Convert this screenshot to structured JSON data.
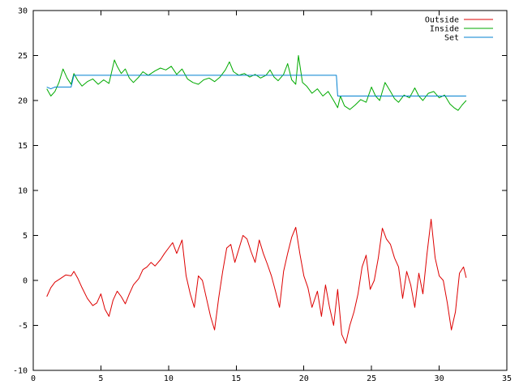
{
  "chart_data": {
    "type": "line",
    "title": "",
    "xlabel": "",
    "ylabel": "",
    "xlim": [
      0,
      35
    ],
    "ylim": [
      -10,
      30
    ],
    "x_ticks": [
      "0",
      "5",
      "10",
      "15",
      "20",
      "25",
      "30",
      "35"
    ],
    "y_ticks": [
      "-10",
      "-5",
      "0",
      "5",
      "10",
      "15",
      "20",
      "25",
      "30"
    ],
    "grid": false,
    "legend": "top-right",
    "series": [
      {
        "name": "Outside",
        "color": "#dd0000",
        "points": [
          [
            1.0,
            -1.8
          ],
          [
            1.3,
            -0.8
          ],
          [
            1.6,
            -0.2
          ],
          [
            2.0,
            0.2
          ],
          [
            2.4,
            0.6
          ],
          [
            2.8,
            0.5
          ],
          [
            3.0,
            1.0
          ],
          [
            3.3,
            0.2
          ],
          [
            3.6,
            -0.8
          ],
          [
            4.0,
            -2.0
          ],
          [
            4.4,
            -2.8
          ],
          [
            4.7,
            -2.5
          ],
          [
            5.0,
            -1.5
          ],
          [
            5.3,
            -3.2
          ],
          [
            5.6,
            -4.0
          ],
          [
            5.9,
            -2.2
          ],
          [
            6.2,
            -1.2
          ],
          [
            6.5,
            -1.8
          ],
          [
            6.8,
            -2.6
          ],
          [
            7.1,
            -1.5
          ],
          [
            7.4,
            -0.5
          ],
          [
            7.8,
            0.2
          ],
          [
            8.1,
            1.2
          ],
          [
            8.4,
            1.5
          ],
          [
            8.7,
            2.0
          ],
          [
            9.0,
            1.6
          ],
          [
            9.4,
            2.3
          ],
          [
            9.7,
            3.0
          ],
          [
            10.0,
            3.6
          ],
          [
            10.3,
            4.2
          ],
          [
            10.6,
            3.0
          ],
          [
            11.0,
            4.5
          ],
          [
            11.3,
            0.5
          ],
          [
            11.6,
            -1.5
          ],
          [
            11.9,
            -3.0
          ],
          [
            12.2,
            0.5
          ],
          [
            12.5,
            0.0
          ],
          [
            12.8,
            -2.0
          ],
          [
            13.1,
            -4.0
          ],
          [
            13.4,
            -5.5
          ],
          [
            13.7,
            -2.0
          ],
          [
            14.0,
            1.0
          ],
          [
            14.3,
            3.6
          ],
          [
            14.6,
            4.0
          ],
          [
            14.9,
            2.0
          ],
          [
            15.2,
            3.5
          ],
          [
            15.5,
            5.0
          ],
          [
            15.8,
            4.6
          ],
          [
            16.1,
            3.2
          ],
          [
            16.4,
            2.0
          ],
          [
            16.7,
            4.5
          ],
          [
            17.0,
            3.0
          ],
          [
            17.3,
            1.8
          ],
          [
            17.6,
            0.5
          ],
          [
            17.9,
            -1.2
          ],
          [
            18.2,
            -3.0
          ],
          [
            18.5,
            1.0
          ],
          [
            18.8,
            3.0
          ],
          [
            19.1,
            4.8
          ],
          [
            19.4,
            5.9
          ],
          [
            19.7,
            3.0
          ],
          [
            20.0,
            0.5
          ],
          [
            20.3,
            -0.8
          ],
          [
            20.6,
            -3.0
          ],
          [
            21.0,
            -1.2
          ],
          [
            21.3,
            -4.0
          ],
          [
            21.6,
            -0.5
          ],
          [
            21.9,
            -3.0
          ],
          [
            22.2,
            -5.0
          ],
          [
            22.5,
            -1.0
          ],
          [
            22.8,
            -6.0
          ],
          [
            23.1,
            -7.0
          ],
          [
            23.4,
            -5.0
          ],
          [
            23.7,
            -3.5
          ],
          [
            24.0,
            -1.5
          ],
          [
            24.3,
            1.5
          ],
          [
            24.6,
            2.8
          ],
          [
            24.9,
            -1.0
          ],
          [
            25.2,
            0.0
          ],
          [
            25.5,
            2.5
          ],
          [
            25.8,
            5.8
          ],
          [
            26.1,
            4.6
          ],
          [
            26.4,
            4.0
          ],
          [
            26.7,
            2.5
          ],
          [
            27.0,
            1.5
          ],
          [
            27.3,
            -2.0
          ],
          [
            27.6,
            1.0
          ],
          [
            27.9,
            -0.5
          ],
          [
            28.2,
            -3.0
          ],
          [
            28.5,
            0.8
          ],
          [
            28.8,
            -1.5
          ],
          [
            29.1,
            3.0
          ],
          [
            29.4,
            6.8
          ],
          [
            29.7,
            2.5
          ],
          [
            30.0,
            0.5
          ],
          [
            30.3,
            0.0
          ],
          [
            30.6,
            -2.5
          ],
          [
            30.9,
            -5.5
          ],
          [
            31.2,
            -3.5
          ],
          [
            31.5,
            0.8
          ],
          [
            31.8,
            1.5
          ],
          [
            32.0,
            0.3
          ]
        ]
      },
      {
        "name": "Inside",
        "color": "#00aa00",
        "points": [
          [
            1.0,
            21.3
          ],
          [
            1.3,
            20.5
          ],
          [
            1.6,
            21.0
          ],
          [
            1.9,
            22.0
          ],
          [
            2.2,
            23.5
          ],
          [
            2.5,
            22.5
          ],
          [
            2.8,
            21.8
          ],
          [
            3.0,
            23.0
          ],
          [
            3.3,
            22.2
          ],
          [
            3.6,
            21.6
          ],
          [
            4.0,
            22.1
          ],
          [
            4.4,
            22.4
          ],
          [
            4.8,
            21.8
          ],
          [
            5.2,
            22.3
          ],
          [
            5.6,
            21.9
          ],
          [
            6.0,
            24.5
          ],
          [
            6.2,
            23.8
          ],
          [
            6.5,
            23.0
          ],
          [
            6.8,
            23.5
          ],
          [
            7.1,
            22.5
          ],
          [
            7.4,
            22.0
          ],
          [
            7.8,
            22.6
          ],
          [
            8.1,
            23.2
          ],
          [
            8.5,
            22.8
          ],
          [
            9.0,
            23.3
          ],
          [
            9.4,
            23.6
          ],
          [
            9.8,
            23.4
          ],
          [
            10.2,
            23.8
          ],
          [
            10.6,
            22.9
          ],
          [
            11.0,
            23.5
          ],
          [
            11.4,
            22.4
          ],
          [
            11.8,
            22.0
          ],
          [
            12.2,
            21.8
          ],
          [
            12.6,
            22.3
          ],
          [
            13.0,
            22.5
          ],
          [
            13.4,
            22.1
          ],
          [
            13.8,
            22.6
          ],
          [
            14.2,
            23.4
          ],
          [
            14.5,
            24.3
          ],
          [
            14.8,
            23.2
          ],
          [
            15.2,
            22.8
          ],
          [
            15.6,
            23.0
          ],
          [
            16.0,
            22.6
          ],
          [
            16.4,
            22.9
          ],
          [
            16.8,
            22.5
          ],
          [
            17.2,
            22.8
          ],
          [
            17.5,
            23.4
          ],
          [
            17.8,
            22.6
          ],
          [
            18.1,
            22.2
          ],
          [
            18.5,
            22.9
          ],
          [
            18.8,
            24.1
          ],
          [
            19.1,
            22.3
          ],
          [
            19.4,
            21.8
          ],
          [
            19.6,
            25.0
          ],
          [
            19.9,
            22.0
          ],
          [
            20.2,
            21.6
          ],
          [
            20.6,
            20.8
          ],
          [
            21.0,
            21.3
          ],
          [
            21.4,
            20.5
          ],
          [
            21.8,
            21.0
          ],
          [
            22.2,
            20.0
          ],
          [
            22.5,
            19.2
          ],
          [
            22.7,
            20.5
          ],
          [
            23.0,
            19.4
          ],
          [
            23.4,
            19.0
          ],
          [
            23.8,
            19.5
          ],
          [
            24.2,
            20.1
          ],
          [
            24.6,
            19.8
          ],
          [
            25.0,
            21.5
          ],
          [
            25.3,
            20.5
          ],
          [
            25.6,
            20.0
          ],
          [
            26.0,
            22.0
          ],
          [
            26.4,
            21.0
          ],
          [
            26.7,
            20.2
          ],
          [
            27.0,
            19.8
          ],
          [
            27.4,
            20.6
          ],
          [
            27.8,
            20.3
          ],
          [
            28.2,
            21.4
          ],
          [
            28.5,
            20.5
          ],
          [
            28.8,
            20.0
          ],
          [
            29.2,
            20.8
          ],
          [
            29.6,
            21.0
          ],
          [
            30.0,
            20.3
          ],
          [
            30.4,
            20.6
          ],
          [
            30.8,
            19.6
          ],
          [
            31.1,
            19.2
          ],
          [
            31.4,
            18.9
          ],
          [
            31.7,
            19.5
          ],
          [
            32.0,
            20.0
          ]
        ]
      },
      {
        "name": "Set",
        "color": "#0080d0",
        "points": [
          [
            1.0,
            21.5
          ],
          [
            1.3,
            21.3
          ],
          [
            1.6,
            21.5
          ],
          [
            2.2,
            21.5
          ],
          [
            2.8,
            21.5
          ],
          [
            3.0,
            22.8
          ],
          [
            12.5,
            22.8
          ],
          [
            22.4,
            22.8
          ],
          [
            22.5,
            20.5
          ],
          [
            32.0,
            20.5
          ]
        ]
      }
    ]
  }
}
